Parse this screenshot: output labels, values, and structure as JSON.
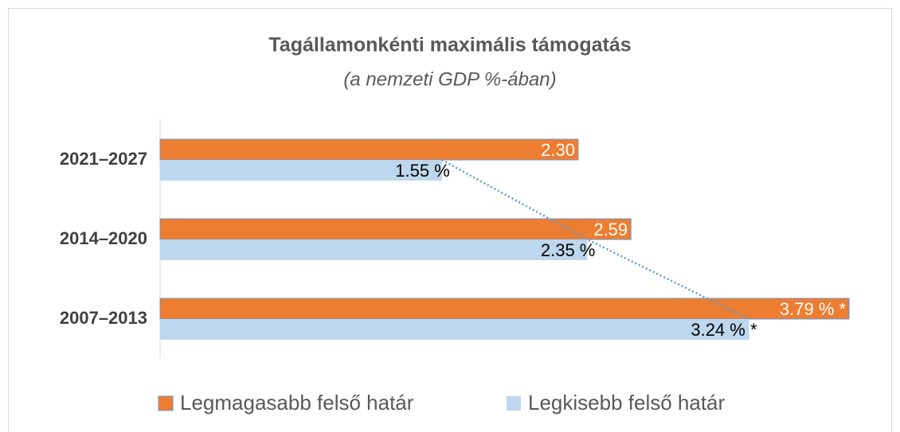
{
  "chart_data": {
    "type": "hbar",
    "title": "Tagállamonkénti maximális támogatás",
    "subtitle": "(a nemzeti GDP %-ában)",
    "categories": [
      "2021–2027",
      "2014–2020",
      "2007–2013"
    ],
    "series": [
      {
        "name": "Legmagasabb felső határ",
        "color": "#ed7d31",
        "values": [
          2.3,
          2.59,
          3.79
        ],
        "value_labels": [
          "2.30",
          "2.59",
          "3.79 % *"
        ]
      },
      {
        "name": "Legkisebb felső határ",
        "color": "#bdd7ee",
        "values": [
          1.55,
          2.35,
          3.24
        ],
        "value_labels": [
          "1.55 %",
          "2.35 %",
          "3.24 % *"
        ]
      }
    ],
    "xlim": [
      0,
      4
    ],
    "trendline": true,
    "legend": "bottom"
  }
}
